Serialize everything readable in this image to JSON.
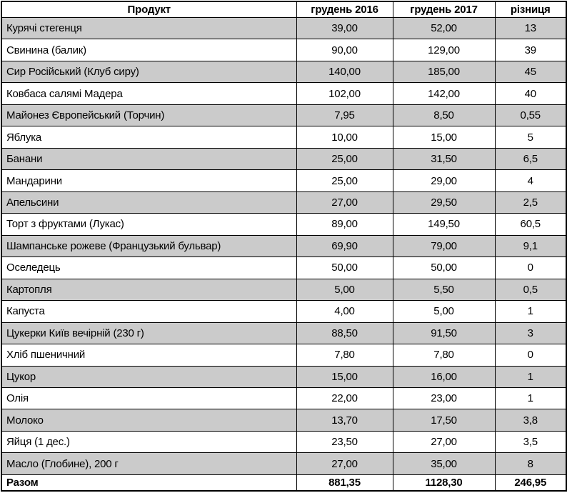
{
  "table": {
    "columns": [
      "Продукт",
      "грудень 2016",
      "грудень 2017",
      "різниця"
    ],
    "rows": [
      [
        "Курячі стегенця",
        "39,00",
        "52,00",
        "13"
      ],
      [
        "Свинина (балик)",
        "90,00",
        "129,00",
        "39"
      ],
      [
        "Сир Російський (Клуб сиру)",
        "140,00",
        "185,00",
        "45"
      ],
      [
        "Ковбаса салямі Мадера",
        "102,00",
        "142,00",
        "40"
      ],
      [
        "Майонез Європейський (Торчин)",
        "7,95",
        "8,50",
        "0,55"
      ],
      [
        "Яблука",
        "10,00",
        "15,00",
        "5"
      ],
      [
        "Банани",
        "25,00",
        "31,50",
        "6,5"
      ],
      [
        "Мандарини",
        "25,00",
        "29,00",
        "4"
      ],
      [
        "Апельсини",
        "27,00",
        "29,50",
        "2,5"
      ],
      [
        "Торт з фруктами (Лукас)",
        "89,00",
        "149,50",
        "60,5"
      ],
      [
        "Шампанське рожеве (Французький бульвар)",
        "69,90",
        "79,00",
        "9,1"
      ],
      [
        "Оселедець",
        "50,00",
        "50,00",
        "0"
      ],
      [
        "Картопля",
        "5,00",
        "5,50",
        "0,5"
      ],
      [
        "Капуста",
        "4,00",
        "5,00",
        "1"
      ],
      [
        "Цукерки Київ вечірній (230 г)",
        "88,50",
        "91,50",
        "3"
      ],
      [
        "Хліб пшеничний",
        "7,80",
        "7,80",
        "0"
      ],
      [
        "Цукор",
        "15,00",
        "16,00",
        "1"
      ],
      [
        "Олія",
        "22,00",
        "23,00",
        "1"
      ],
      [
        "Молоко",
        "13,70",
        "17,50",
        "3,8"
      ],
      [
        "Яйця (1 дес.)",
        "23,50",
        "27,00",
        "3,5"
      ],
      [
        "Масло (Глобине), 200 г",
        "27,00",
        "35,00",
        "8"
      ]
    ],
    "total_row": [
      "Разом",
      "881,35",
      "1128,30",
      "246,95"
    ],
    "colors": {
      "shaded_row": "#cbcbcb",
      "row_bg": "#ffffff",
      "border": "#000000"
    }
  }
}
